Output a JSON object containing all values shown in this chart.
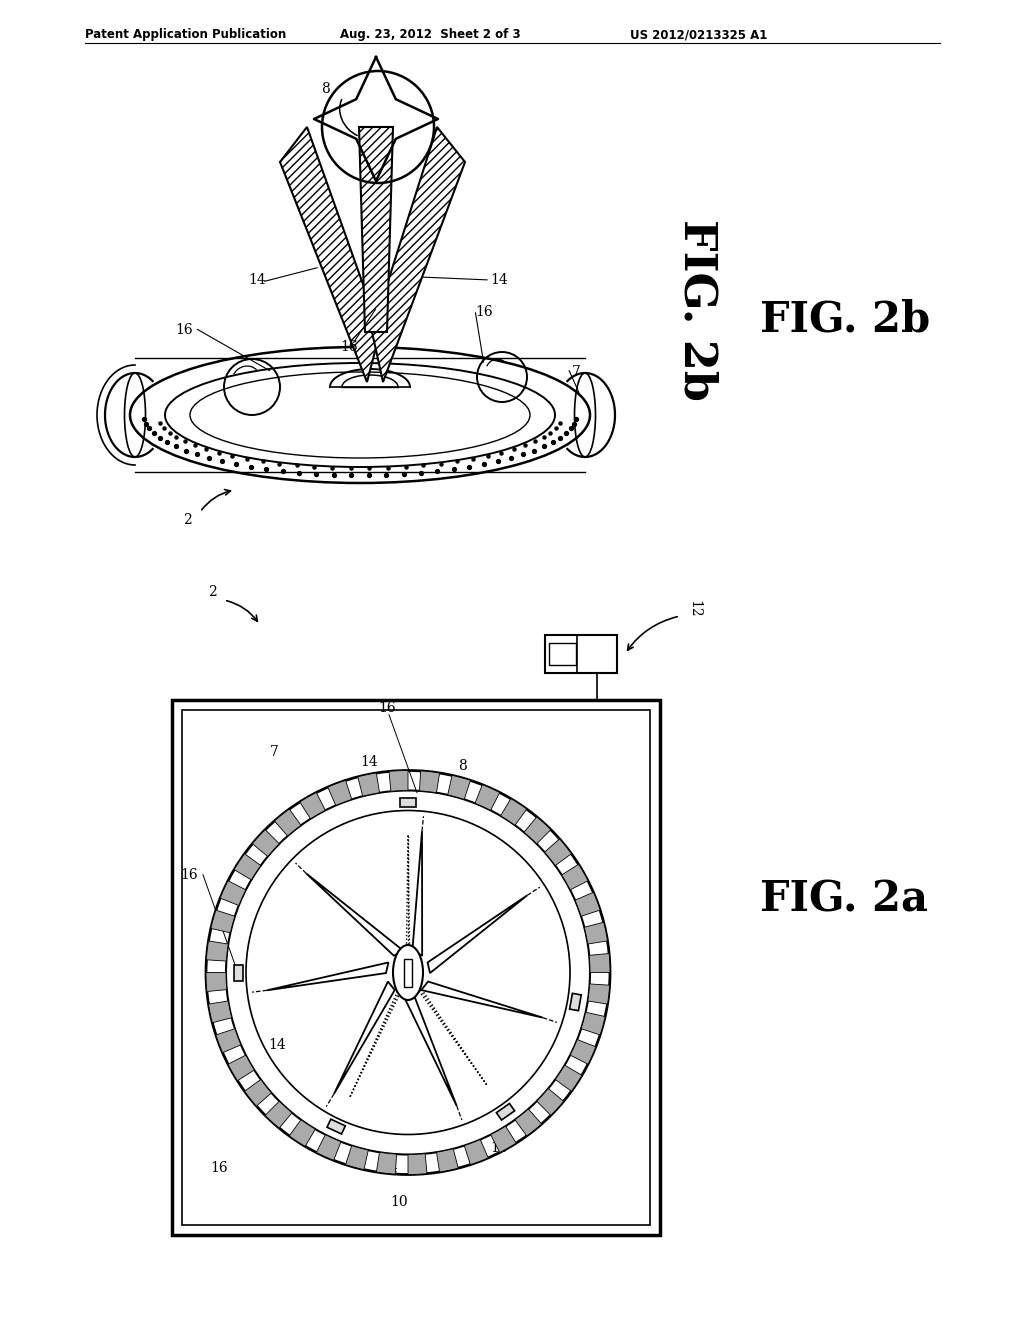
{
  "bg_color": "#ffffff",
  "header_left": "Patent Application Publication",
  "header_mid": "Aug. 23, 2012  Sheet 2 of 3",
  "header_right": "US 2012/0213325 A1",
  "fig2b_label": "FIG. 2b",
  "fig2a_label": "FIG. 2a"
}
